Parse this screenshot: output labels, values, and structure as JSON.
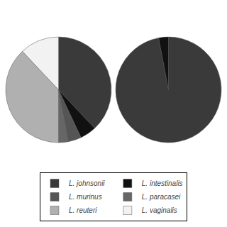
{
  "chart_data": [
    {
      "type": "pie",
      "categories": [
        "L. johnsonii",
        "L. intestinalis",
        "L. murinus",
        "L. paracasei",
        "L. reuteri",
        "L. vaginalis"
      ],
      "values": [
        38,
        5,
        4,
        3,
        38,
        12
      ],
      "colors": [
        "#3a3a3a",
        "#111111",
        "#555555",
        "#666666",
        "#b0b0b0",
        "#f2f2f2"
      ],
      "legend": "bottom"
    },
    {
      "type": "pie",
      "categories": [
        "L. johnsonii",
        "L. intestinalis"
      ],
      "values": [
        97,
        3
      ],
      "colors": [
        "#3a3a3a",
        "#111111"
      ]
    }
  ]
}
